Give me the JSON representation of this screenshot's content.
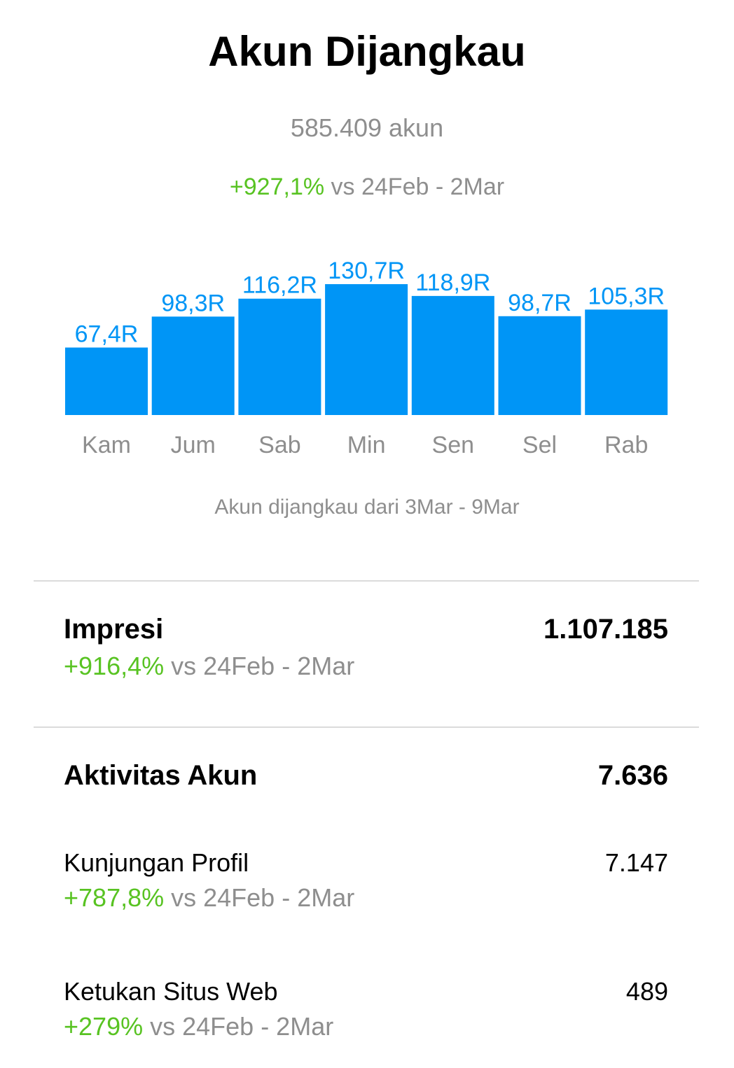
{
  "header": {
    "title": "Akun Dijangkau",
    "total": "585.409 akun",
    "change_pct": "+927,1%",
    "change_suffix": " vs 24Feb - 2Mar"
  },
  "chart_data": {
    "type": "bar",
    "categories": [
      "Kam",
      "Jum",
      "Sab",
      "Min",
      "Sen",
      "Sel",
      "Rab"
    ],
    "values": [
      67.4,
      98.3,
      116.2,
      130.7,
      118.9,
      98.7,
      105.3
    ],
    "data_labels": [
      "67,4R",
      "98,3R",
      "116,2R",
      "130,7R",
      "118,9R",
      "98,7R",
      "105,3R"
    ],
    "ylim": [
      0,
      130.7
    ],
    "grid": false,
    "color": "#0095f6",
    "label_color": "#0095f6",
    "category_label_color": "#8e8e8e"
  },
  "chart_caption": "Akun dijangkau dari 3Mar - 9Mar",
  "impressions": {
    "label": "Impresi",
    "value": "1.107.185",
    "change_pct": "+916,4%",
    "change_suffix": " vs 24Feb - 2Mar"
  },
  "account_activity": {
    "label": "Aktivitas Akun",
    "value": "7.636"
  },
  "profile_visits": {
    "label": "Kunjungan Profil",
    "value": "7.147",
    "change_pct": "+787,8%",
    "change_suffix": " vs 24Feb - 2Mar"
  },
  "website_taps": {
    "label": "Ketukan Situs Web",
    "value": "489",
    "change_pct": "+279%",
    "change_suffix": " vs 24Feb - 2Mar"
  },
  "colors": {
    "positive": "#58c322",
    "muted": "#8e8e8e",
    "accent": "#0095f6",
    "divider": "#dbdbdb"
  }
}
